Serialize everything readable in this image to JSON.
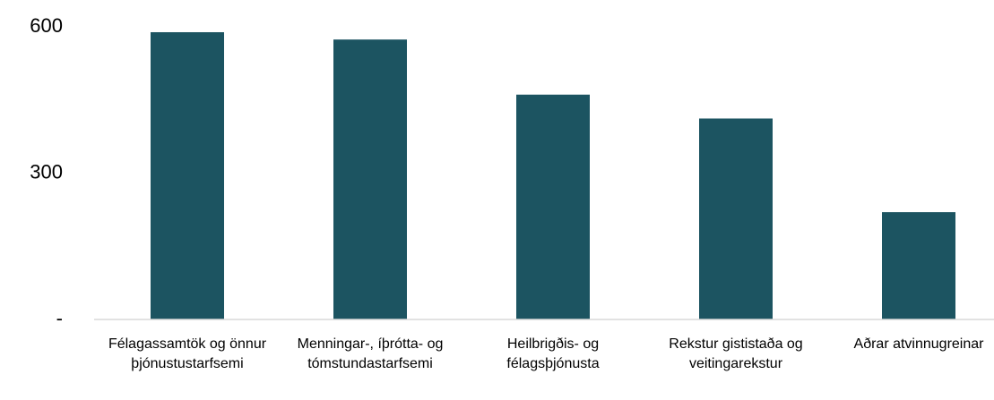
{
  "chart_data": {
    "type": "bar",
    "categories": [
      "Félagassamtök og önnur þjónustustarfsemi",
      "Menningar-, íþrótta- og tómstundastarfsemi",
      "Heilbrigðis- og félagsþjónusta",
      "Rekstur gististaða og veitingarekstur",
      "Aðrar atvinnugreinar"
    ],
    "values": [
      589,
      574,
      461,
      412,
      220
    ],
    "color": "#1c5461",
    "ylim": [
      0,
      600
    ],
    "yticks": [
      {
        "value": 0,
        "label": "-"
      },
      300,
      600
    ],
    "grid": false
  }
}
